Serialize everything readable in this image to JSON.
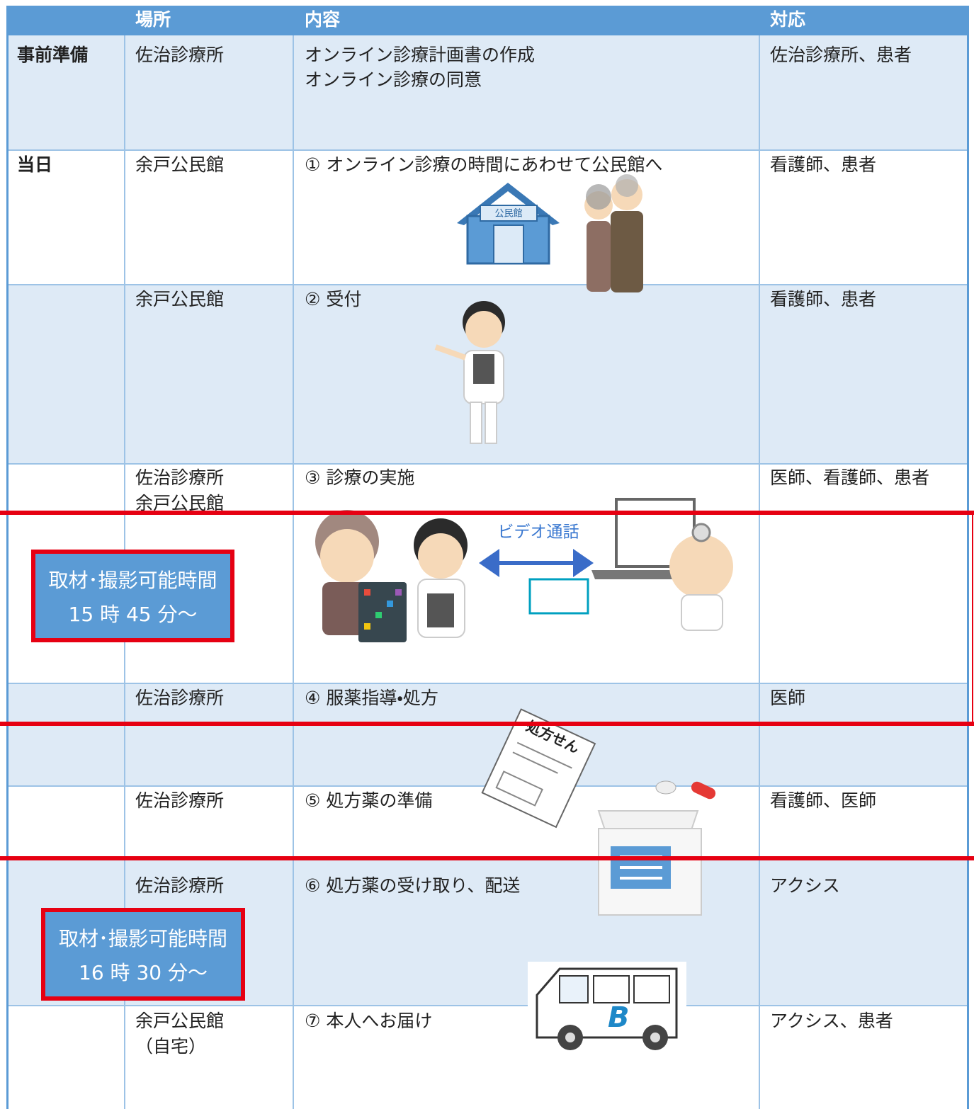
{
  "table": {
    "header": {
      "place": "場所",
      "content": "内容",
      "staff": "対応"
    },
    "rows": [
      {
        "label": "事前準備",
        "place": [
          "佐治診療所"
        ],
        "content": [
          "オンライン診療計画書の作成",
          "オンライン診療の同意"
        ],
        "staff": "佐治診療所、患者"
      },
      {
        "label": "当日",
        "place": [
          "余戸公民館"
        ],
        "content": [
          "① オンライン診療の時間にあわせて公民館へ"
        ],
        "staff": "看護師、患者"
      },
      {
        "place": [
          "余戸公民館"
        ],
        "content": [
          "② 受付"
        ],
        "staff": "看護師、患者"
      },
      {
        "place": [
          "佐治診療所",
          "余戸公民館"
        ],
        "content": [
          "③ 診療の実施"
        ],
        "staff": "医師、看護師、患者"
      },
      {
        "place": [
          "佐治診療所"
        ],
        "content": [
          "④ 服薬指導・処方"
        ],
        "staff": "医師"
      },
      {
        "place": [
          "佐治診療所"
        ],
        "content": [
          "⑤ 処方薬の準備"
        ],
        "staff": "看護師、医師"
      },
      {
        "place": [
          "佐治診療所"
        ],
        "content": [
          "⑥ 処方薬の受け取り、配送"
        ],
        "staff": "アクシス"
      },
      {
        "place": [
          "余戸公民館",
          "（自宅）"
        ],
        "content": [
          "⑦ 本人へお届け"
        ],
        "staff": "アクシス、患者"
      }
    ]
  },
  "notices": [
    {
      "title": "取材･撮影可能時間",
      "time": "15 時 45 分～"
    },
    {
      "title": "取材･撮影可能時間",
      "time": "16 時 30 分～"
    }
  ],
  "illustrations": {
    "building_sign": "公民館",
    "video_call": "ビデオ通話",
    "prescription": "処方せん"
  }
}
